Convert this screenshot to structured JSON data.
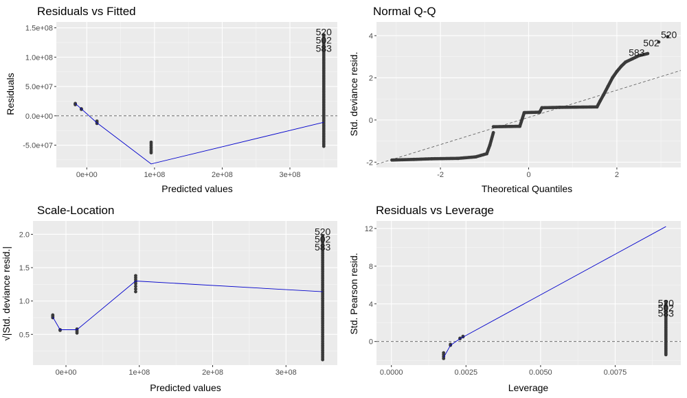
{
  "chart_data": [
    {
      "id": "p1",
      "type": "scatter",
      "title": "Residuals vs Fitted",
      "xlabel": "Predicted values",
      "ylabel": "Residuals",
      "xlim": [
        -45000000,
        370000000
      ],
      "ylim": [
        -88000000,
        160000000
      ],
      "xticks": [
        0,
        100000000,
        200000000,
        300000000
      ],
      "xtick_labels": [
        "0e+00",
        "1e+08",
        "2e+08",
        "3e+08"
      ],
      "yticks": [
        -50000000,
        0,
        50000000,
        100000000,
        150000000
      ],
      "ytick_labels": [
        "-5.0e+07",
        "0.0e+00",
        "5.0e+07",
        "1.0e+08",
        "1.5e+08"
      ],
      "hline": 0,
      "clusters": [
        {
          "x": -17000000,
          "y": [
            21000000,
            20000000,
            19000000
          ]
        },
        {
          "x": -8000000,
          "y": [
            12000000,
            11000000
          ]
        },
        {
          "x": 15000000,
          "y": [
            -9000000,
            -11000000,
            -13000000
          ]
        },
        {
          "x": 95000000,
          "y": [
            -45000000,
            -48000000,
            -51000000,
            -54000000,
            -57000000,
            -60000000,
            -63000000
          ]
        },
        {
          "x": 350000000,
          "y_range": [
            -52000000,
            138000000
          ],
          "count": 70
        }
      ],
      "smooth": {
        "x": [
          -17000000,
          15000000,
          95000000,
          350000000
        ],
        "y": [
          21000000,
          -12000000,
          -82000000,
          -11000000
        ]
      },
      "labels": [
        {
          "text": "520",
          "x": 350000000,
          "y": 143000000
        },
        {
          "text": "502",
          "x": 350000000,
          "y": 129000000
        },
        {
          "text": "583",
          "x": 350000000,
          "y": 115000000
        }
      ]
    },
    {
      "id": "p2",
      "type": "scatter",
      "title": "Normal Q-Q",
      "xlabel": "Theoretical Quantiles",
      "ylabel": "Std. deviance resid.",
      "xlim": [
        -3.45,
        3.45
      ],
      "ylim": [
        -2.25,
        4.65
      ],
      "xticks": [
        -2,
        0,
        2
      ],
      "xtick_labels": [
        "-2",
        "0",
        "2"
      ],
      "yticks": [
        -2,
        0,
        2,
        4
      ],
      "ytick_labels": [
        "-2",
        "0",
        "2",
        "4"
      ],
      "refline": {
        "x": [
          -3.45,
          3.45
        ],
        "y": [
          -2.1,
          2.35
        ]
      },
      "qq_segments": [
        {
          "x": [
            -3.1,
            -2.6,
            -2.2,
            -1.6,
            -1.2,
            -0.95,
            -0.88,
            -0.8
          ],
          "y": [
            -1.9,
            -1.87,
            -1.84,
            -1.82,
            -1.75,
            -1.6,
            -1.2,
            -0.6
          ]
        },
        {
          "x": [
            -0.8,
            -0.2
          ],
          "y": [
            -0.32,
            -0.3
          ]
        },
        {
          "x": [
            -0.2,
            -0.1
          ],
          "y": [
            -0.3,
            0.35
          ]
        },
        {
          "x": [
            -0.1,
            0.25
          ],
          "y": [
            0.35,
            0.37
          ]
        },
        {
          "x": [
            0.25,
            0.3
          ],
          "y": [
            0.37,
            0.58
          ]
        },
        {
          "x": [
            0.3,
            0.7
          ],
          "y": [
            0.58,
            0.6
          ]
        },
        {
          "x": [
            0.7,
            1.55
          ],
          "y": [
            0.6,
            0.62
          ]
        },
        {
          "x": [
            1.55,
            1.62,
            1.7,
            1.8,
            1.9,
            2.0,
            2.1,
            2.2,
            2.35,
            2.5,
            2.7
          ],
          "y": [
            0.62,
            0.9,
            1.2,
            1.6,
            2.0,
            2.3,
            2.55,
            2.75,
            2.9,
            3.05,
            3.15
          ]
        }
      ],
      "outlier_points": [
        {
          "x": 2.95,
          "y": 3.7
        },
        {
          "x": 3.15,
          "y": 3.95
        }
      ],
      "labels": [
        {
          "text": "520",
          "x": 3.18,
          "y": 4.05
        },
        {
          "text": "502",
          "x": 2.78,
          "y": 3.65
        },
        {
          "text": "583",
          "x": 2.45,
          "y": 3.2
        }
      ]
    },
    {
      "id": "p3",
      "type": "scatter",
      "title": "Scale-Location",
      "xlabel": "Predicted values",
      "ylabel": "√|Std. deviance resid.|",
      "xlim": [
        -45000000,
        370000000
      ],
      "ylim": [
        0.04,
        2.2
      ],
      "xticks": [
        0,
        100000000,
        200000000,
        300000000
      ],
      "xtick_labels": [
        "0e+00",
        "1e+08",
        "2e+08",
        "3e+08"
      ],
      "yticks": [
        0.5,
        1.0,
        1.5,
        2.0
      ],
      "ytick_labels": [
        "0.5",
        "1.0",
        "1.5",
        "2.0"
      ],
      "clusters": [
        {
          "x": -18000000,
          "y": [
            0.79,
            0.77,
            0.75
          ]
        },
        {
          "x": -8000000,
          "y": [
            0.57,
            0.56
          ]
        },
        {
          "x": 15000000,
          "y": [
            0.58,
            0.56,
            0.54,
            0.52
          ]
        },
        {
          "x": 95000000,
          "y": [
            1.38,
            1.35,
            1.32,
            1.29,
            1.26,
            1.22,
            1.18,
            1.14
          ]
        },
        {
          "x": 350000000,
          "y_range": [
            0.12,
            1.98
          ],
          "count": 70
        }
      ],
      "smooth": {
        "x": [
          -18000000,
          -8000000,
          15000000,
          95000000,
          350000000
        ],
        "y": [
          0.76,
          0.57,
          0.57,
          1.3,
          1.14
        ]
      },
      "labels": [
        {
          "text": "520",
          "x": 350000000,
          "y": 2.04
        },
        {
          "text": "502",
          "x": 350000000,
          "y": 1.93
        },
        {
          "text": "583",
          "x": 350000000,
          "y": 1.81
        }
      ]
    },
    {
      "id": "p4",
      "type": "scatter",
      "title": "Residuals vs Leverage",
      "xlabel": "Leverage",
      "ylabel": "Std. Pearson resid.",
      "xlim": [
        -0.0005,
        0.0097
      ],
      "ylim": [
        -2.5,
        12.8
      ],
      "xticks": [
        0,
        0.0025,
        0.005,
        0.0075
      ],
      "xtick_labels": [
        "0.0000",
        "0.0025",
        "0.0050",
        "0.0075"
      ],
      "yticks": [
        0,
        4,
        8,
        12
      ],
      "ytick_labels": [
        "0",
        "4",
        "8",
        "12"
      ],
      "hline": 0,
      "clusters": [
        {
          "x": 0.00175,
          "y": [
            -1.2,
            -1.4,
            -1.6,
            -1.8
          ]
        },
        {
          "x": 0.00198,
          "y": [
            -0.3,
            -0.4
          ]
        },
        {
          "x": 0.0023,
          "y": [
            0.35,
            0.3
          ]
        },
        {
          "x": 0.0024,
          "y": [
            0.55,
            0.5
          ]
        },
        {
          "x": 0.0092,
          "y_range": [
            -1.4,
            4.2
          ],
          "count": 50
        }
      ],
      "smooth": {
        "x": [
          0.00175,
          0.00198,
          0.0023,
          0.0092
        ],
        "y": [
          -1.7,
          -0.4,
          0.3,
          12.2
        ]
      },
      "labels": [
        {
          "text": "520",
          "x": 0.0092,
          "y": 4.1
        },
        {
          "text": "502",
          "x": 0.0092,
          "y": 3.6
        },
        {
          "text": "583",
          "x": 0.0092,
          "y": 3.0
        }
      ]
    }
  ]
}
